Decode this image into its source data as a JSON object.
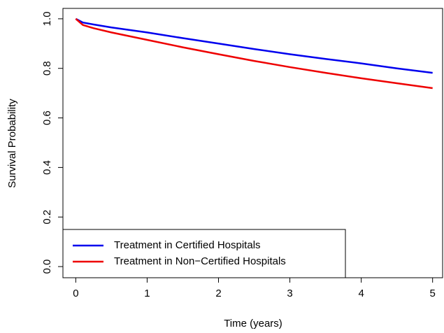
{
  "chart_data": {
    "type": "line",
    "x_label": "Time (years)",
    "y_label": "Survival Probability",
    "x": [
      0,
      0.1,
      0.25,
      0.5,
      1,
      1.5,
      2,
      2.5,
      3,
      3.5,
      4,
      4.5,
      5
    ],
    "series": [
      {
        "name": "Treatment in Certified Hospitals",
        "color": "#0000ee",
        "values": [
          1.0,
          0.985,
          0.977,
          0.965,
          0.945,
          0.922,
          0.9,
          0.878,
          0.857,
          0.838,
          0.82,
          0.8,
          0.782
        ]
      },
      {
        "name": "Treatment in Non−Certified Hospitals",
        "color": "#ee0000",
        "values": [
          1.0,
          0.975,
          0.962,
          0.945,
          0.915,
          0.885,
          0.857,
          0.83,
          0.805,
          0.782,
          0.76,
          0.74,
          0.72
        ]
      }
    ],
    "xlim": [
      -0.18,
      5.15
    ],
    "ylim": [
      -0.045,
      1.042
    ],
    "xticks": [
      0,
      1,
      2,
      3,
      4,
      5
    ],
    "yticks": [
      {
        "value": 0,
        "label": "0.0"
      },
      0.2,
      0.4,
      0.6,
      0.8,
      {
        "value": 1,
        "label": "1.0"
      }
    ],
    "legend": "bottomleft"
  }
}
